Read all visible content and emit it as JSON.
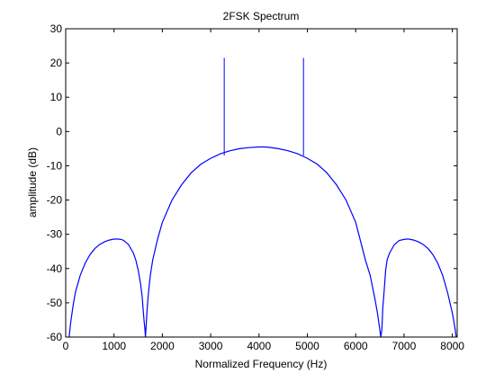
{
  "chart_data": {
    "type": "line",
    "title": "2FSK Spectrum",
    "xlabel": "Normalized Frequency (Hz)",
    "ylabel": "amplitude (dB)",
    "xlim": [
      0,
      8100
    ],
    "ylim": [
      -60,
      30
    ],
    "xticks": [
      0,
      1000,
      2000,
      3000,
      4000,
      5000,
      6000,
      7000,
      8000
    ],
    "yticks": [
      -60,
      -50,
      -40,
      -30,
      -20,
      -10,
      0,
      10,
      20,
      30
    ],
    "grid": false,
    "legend": "none",
    "line_color": "#0000ff",
    "series": [
      {
        "x": [
          70,
          100,
          150,
          200,
          300,
          400,
          500,
          600,
          700,
          800,
          900,
          1000,
          1100,
          1150,
          1200,
          1300,
          1400,
          1450,
          1500,
          1550,
          1580,
          1600,
          1620,
          1640,
          1650,
          1660,
          1680,
          1700,
          1720,
          1750,
          1800,
          1900,
          2000,
          2200,
          2400,
          2600,
          2800,
          3000,
          3200,
          3400,
          3600,
          3800,
          4000,
          4100,
          4200,
          4400,
          4600,
          4800,
          5000,
          5200,
          5400,
          5600,
          5800,
          6000,
          6200,
          6300,
          6400,
          6450,
          6500,
          6520,
          6540,
          6550,
          6560,
          6580,
          6600,
          6620,
          6650,
          6700,
          6800,
          6900,
          7000,
          7050,
          7100,
          7200,
          7300,
          7400,
          7500,
          7600,
          7700,
          7800,
          7900,
          8000,
          8050,
          8080
        ],
        "y": [
          -60,
          -56,
          -51,
          -47,
          -42,
          -38.5,
          -36,
          -34.2,
          -33,
          -32.2,
          -31.7,
          -31.4,
          -31.4,
          -31.5,
          -31.8,
          -33,
          -35.5,
          -37.5,
          -40.5,
          -44.5,
          -48,
          -51.5,
          -55,
          -58,
          -60,
          -58,
          -53,
          -49,
          -46,
          -42,
          -37.5,
          -31.5,
          -26.5,
          -20,
          -15.5,
          -12,
          -9.5,
          -7.8,
          -6.5,
          -5.6,
          -5,
          -4.7,
          -4.5,
          -4.5,
          -4.6,
          -5,
          -5.6,
          -6.5,
          -7.8,
          -9.5,
          -12,
          -15.5,
          -20,
          -26.5,
          -37.5,
          -42,
          -49,
          -53,
          -58,
          -60,
          -58,
          -55,
          -51.5,
          -48,
          -44.5,
          -40.5,
          -37.5,
          -35.5,
          -33,
          -31.8,
          -31.5,
          -31.4,
          -31.4,
          -31.7,
          -32.2,
          -33,
          -34.2,
          -36,
          -38.5,
          -42,
          -47,
          -53,
          -57,
          -60
        ]
      }
    ],
    "spikes": [
      {
        "x": 3280,
        "y_base": -7,
        "y_peak": 21.5
      },
      {
        "x": 4920,
        "y_base": -7,
        "y_peak": 21.5
      }
    ]
  }
}
